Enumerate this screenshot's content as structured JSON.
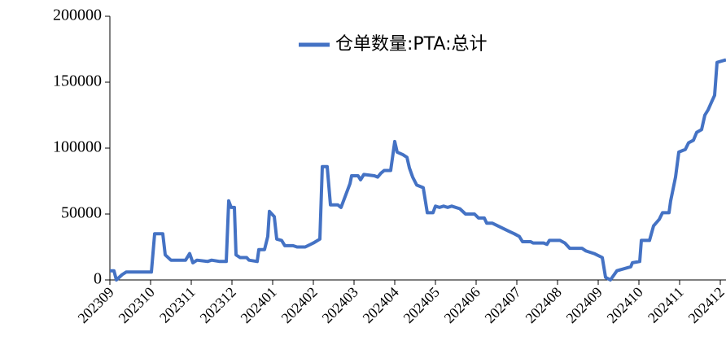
{
  "chart_data": {
    "type": "line",
    "x": [
      0,
      0.1,
      0.16,
      0.3,
      0.4,
      1.02,
      1.1,
      1.3,
      1.36,
      1.5,
      1.86,
      1.96,
      2.04,
      2.14,
      2.4,
      2.5,
      2.7,
      2.86,
      2.92,
      2.98,
      3.06,
      3.1,
      3.2,
      3.36,
      3.42,
      3.62,
      3.66,
      3.8,
      3.88,
      3.92,
      4.04,
      4.1,
      4.22,
      4.3,
      4.5,
      4.6,
      4.8,
      5.0,
      5.16,
      5.22,
      5.34,
      5.42,
      5.6,
      5.68,
      5.9,
      5.94,
      6.1,
      6.16,
      6.24,
      6.5,
      6.58,
      6.66,
      6.74,
      6.9,
      7.0,
      7.06,
      7.2,
      7.3,
      7.36,
      7.44,
      7.54,
      7.7,
      7.8,
      7.94,
      8.0,
      8.1,
      8.2,
      8.3,
      8.4,
      8.6,
      8.74,
      8.96,
      9.06,
      9.2,
      9.26,
      9.4,
      9.6,
      9.8,
      9.94,
      10.06,
      10.14,
      10.34,
      10.4,
      10.66,
      10.74,
      10.8,
      11.06,
      11.18,
      11.3,
      11.6,
      11.7,
      11.9,
      12.1,
      12.18,
      12.3,
      12.46,
      12.8,
      12.84,
      13.02,
      13.06,
      13.26,
      13.36,
      13.5,
      13.58,
      13.74,
      13.78,
      13.9,
      13.98,
      14.14,
      14.22,
      14.34,
      14.42,
      14.54,
      14.62,
      14.7,
      14.8,
      14.86,
      14.92,
      15.14
    ],
    "series": [
      {
        "name": "仓单数量:PTA:总计",
        "color": "#4472c4",
        "values": [
          7000,
          7000,
          0,
          4000,
          6000,
          6000,
          35000,
          35000,
          19000,
          15000,
          15000,
          20000,
          13000,
          15000,
          14000,
          15000,
          14000,
          14000,
          60000,
          55000,
          55000,
          19000,
          17000,
          17000,
          15000,
          14000,
          23000,
          23000,
          33000,
          52000,
          48000,
          31000,
          30000,
          26000,
          26000,
          25000,
          25000,
          28000,
          31000,
          86000,
          86000,
          57000,
          57000,
          55000,
          73000,
          79000,
          79000,
          76000,
          80000,
          79000,
          78000,
          81000,
          83000,
          83000,
          105000,
          97000,
          95000,
          93000,
          85000,
          78000,
          72000,
          70000,
          51000,
          51000,
          56000,
          55000,
          56000,
          55000,
          56000,
          54000,
          50000,
          50000,
          47000,
          47000,
          43000,
          43000,
          40000,
          37000,
          35000,
          33000,
          29000,
          29000,
          28000,
          28000,
          27000,
          30000,
          30000,
          28000,
          24000,
          24000,
          22000,
          20000,
          17000,
          2000,
          0,
          7000,
          10000,
          13000,
          14000,
          30000,
          30000,
          41000,
          46000,
          51000,
          51000,
          60000,
          78000,
          97000,
          99000,
          104000,
          106000,
          112000,
          114000,
          125000,
          129000,
          136000,
          140000,
          165000,
          167000
        ]
      }
    ],
    "xlim": [
      0,
      15.14
    ],
    "xticks": [
      {
        "value": 0,
        "label": "202309"
      },
      {
        "value": 1,
        "label": "202310"
      },
      {
        "value": 2,
        "label": "202311"
      },
      {
        "value": 3,
        "label": "202312"
      },
      {
        "value": 4,
        "label": "202401"
      },
      {
        "value": 5,
        "label": "202402"
      },
      {
        "value": 6,
        "label": "202403"
      },
      {
        "value": 7,
        "label": "202404"
      },
      {
        "value": 8,
        "label": "202405"
      },
      {
        "value": 9,
        "label": "202406"
      },
      {
        "value": 10,
        "label": "202407"
      },
      {
        "value": 11,
        "label": "202408"
      },
      {
        "value": 12,
        "label": "202409"
      },
      {
        "value": 13,
        "label": "202410"
      },
      {
        "value": 14,
        "label": "202411"
      },
      {
        "value": 15,
        "label": "202412"
      }
    ],
    "ylim": [
      0,
      200000
    ],
    "yticks": [
      0,
      50000,
      100000,
      150000,
      200000
    ],
    "legend": "top"
  }
}
